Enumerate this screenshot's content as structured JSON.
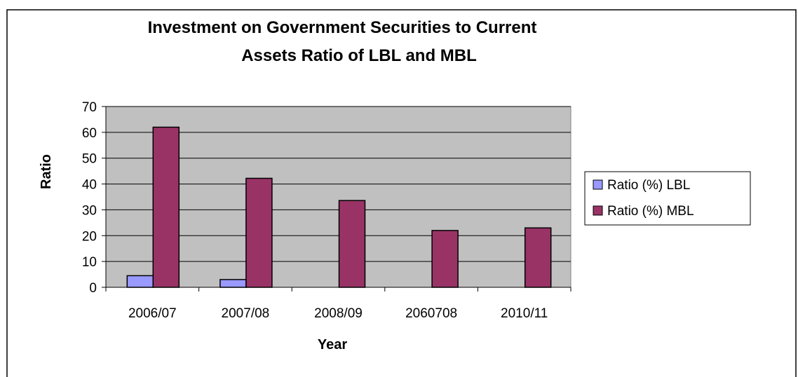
{
  "chart_data": {
    "type": "bar",
    "title_lines": [
      "Investment on Government Securities to Current",
      "Assets Ratio of  LBL  and MBL"
    ],
    "xlabel": "Year",
    "ylabel": "Ratio",
    "categories": [
      "2006/07",
      "2007/08",
      "2008/09",
      "2060708",
      "2010/11"
    ],
    "ylim": [
      0,
      70
    ],
    "yticks": [
      0,
      10,
      20,
      30,
      40,
      50,
      60,
      70
    ],
    "grid": true,
    "legend_position": "right",
    "plot_background": "#c0c0c0",
    "series": [
      {
        "name": "Ratio (%)  LBL",
        "color": "#9999ff",
        "values": [
          4.5,
          3,
          0,
          0,
          0
        ]
      },
      {
        "name": "Ratio (%) MBL",
        "color": "#993366",
        "values": [
          62,
          42.2,
          33.6,
          22,
          23
        ]
      }
    ]
  }
}
